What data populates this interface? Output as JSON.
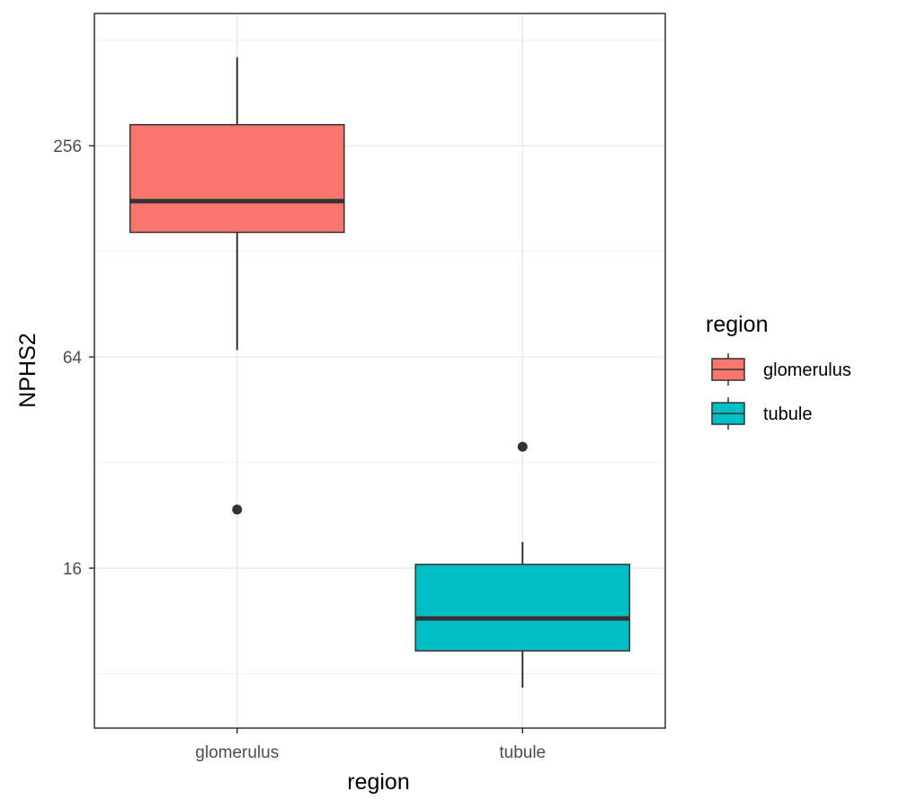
{
  "chart_data": {
    "type": "boxplot",
    "xlabel": "region",
    "ylabel": "NPHS2",
    "y_scale": "log2",
    "ylim": [
      5.6,
      610
    ],
    "y_ticks": [
      16,
      64,
      256
    ],
    "y_tick_labels": [
      "16",
      "64",
      "256"
    ],
    "categories": [
      "glomerulus",
      "tubule"
    ],
    "grid": true,
    "legend": {
      "title": "region",
      "position": "right",
      "entries": [
        "glomerulus",
        "tubule"
      ]
    },
    "series": [
      {
        "name": "glomerulus",
        "color": "#F8766D",
        "whisker_low": 67,
        "q1": 145,
        "median": 178,
        "q3": 294,
        "whisker_high": 458,
        "outliers": [
          23.5
        ]
      },
      {
        "name": "tubule",
        "color": "#00BFC4",
        "whisker_low": 7.3,
        "q1": 9.3,
        "median": 11.5,
        "q3": 16.4,
        "whisker_high": 19.0,
        "outliers": [
          35.5
        ]
      }
    ]
  }
}
